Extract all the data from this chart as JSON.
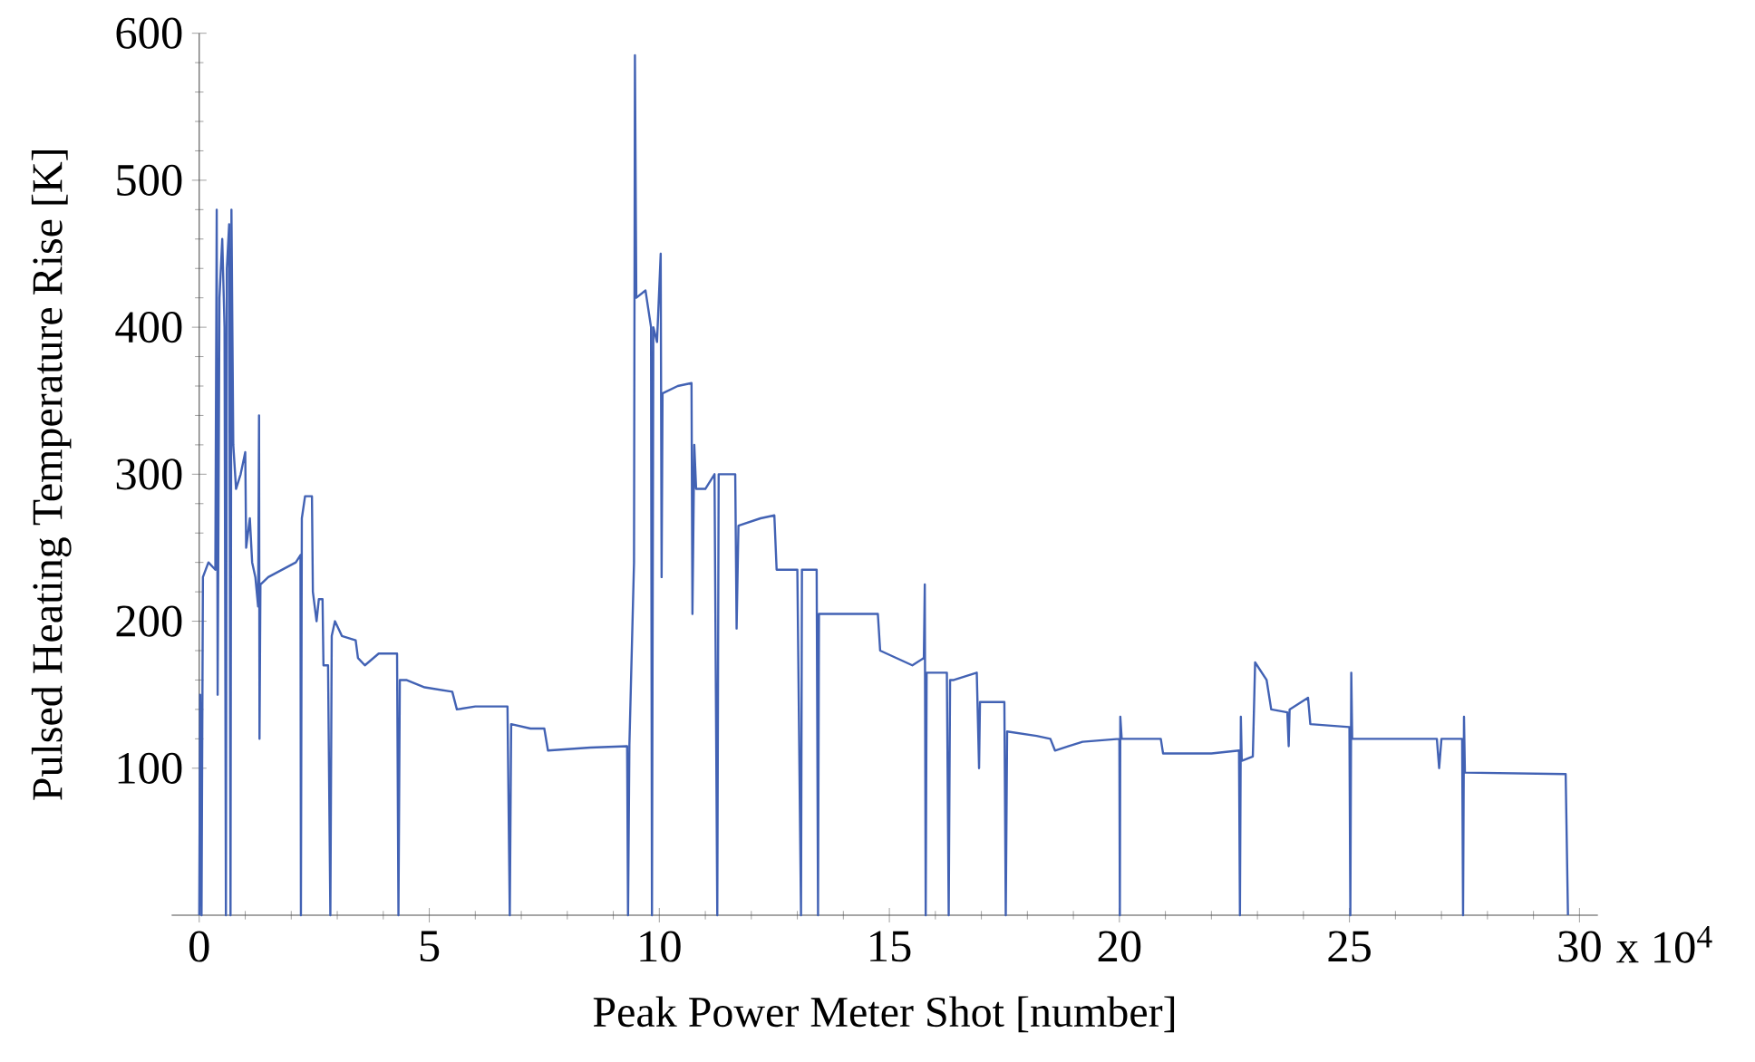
{
  "chart_data": {
    "type": "line",
    "xlabel": "Peak Power Meter Shot [number]",
    "ylabel": "Pulsed Heating Temperature Rise [K]",
    "annotations": [
      "x 10$^{4}$"
    ],
    "color": "#4262b4",
    "xlim": [
      -0.6,
      30.4
    ],
    "ylim": [
      0,
      600
    ],
    "xticks": [
      0,
      5,
      10,
      15,
      20,
      25,
      30
    ],
    "yticks": [
      100,
      200,
      300,
      400,
      500,
      600
    ],
    "x": [
      0,
      0.02,
      0.05,
      0.08,
      0.2,
      0.35,
      0.38,
      0.4,
      0.44,
      0.5,
      0.55,
      0.58,
      0.6,
      0.65,
      0.68,
      0.7,
      0.74,
      0.8,
      0.9,
      1.0,
      1.02,
      1.1,
      1.15,
      1.22,
      1.28,
      1.3,
      1.31,
      1.33,
      1.5,
      1.8,
      2.1,
      2.2,
      2.21,
      2.23,
      2.3,
      2.45,
      2.47,
      2.55,
      2.6,
      2.68,
      2.7,
      2.8,
      2.85,
      2.88,
      2.95,
      3.1,
      3.4,
      3.45,
      3.6,
      3.9,
      4.3,
      4.33,
      4.36,
      4.5,
      4.9,
      5.5,
      5.6,
      6.0,
      6.7,
      6.75,
      6.78,
      7.2,
      7.5,
      7.58,
      8.5,
      9.3,
      9.32,
      9.35,
      9.45,
      9.47,
      9.5,
      9.7,
      9.82,
      9.84,
      9.87,
      9.95,
      10.03,
      10.05,
      10.07,
      10.4,
      10.7,
      10.72,
      10.76,
      10.8,
      11.0,
      11.2,
      11.26,
      11.29,
      11.65,
      11.68,
      11.72,
      12.2,
      12.5,
      12.55,
      13.0,
      13.08,
      13.1,
      13.42,
      13.45,
      13.47,
      14.2,
      14.75,
      14.8,
      15.5,
      15.75,
      15.77,
      15.79,
      15.81,
      16.25,
      16.29,
      16.32,
      16.4,
      16.9,
      16.95,
      16.97,
      17.5,
      17.53,
      17.56,
      18.2,
      18.5,
      18.6,
      18.9,
      19.2,
      20.0,
      20.01,
      20.02,
      20.05,
      20.9,
      20.95,
      22.0,
      22.6,
      22.62,
      22.64,
      22.66,
      22.9,
      22.95,
      23.2,
      23.3,
      23.65,
      23.68,
      23.7,
      24.1,
      24.15,
      25.0,
      25.02,
      25.04,
      25.06,
      26.9,
      26.95,
      27.0,
      27.45,
      27.47,
      27.49,
      27.51,
      29.7,
      29.75
    ],
    "values": [
      0,
      150,
      0,
      230,
      240,
      235,
      480,
      150,
      420,
      460,
      400,
      0,
      440,
      470,
      0,
      480,
      320,
      290,
      300,
      315,
      250,
      270,
      240,
      230,
      210,
      340,
      120,
      225,
      230,
      235,
      240,
      245,
      0,
      270,
      285,
      285,
      220,
      200,
      215,
      215,
      170,
      170,
      0,
      190,
      200,
      190,
      187,
      175,
      170,
      178,
      178,
      0,
      160,
      160,
      155,
      152,
      140,
      142,
      142,
      0,
      130,
      127,
      127,
      112,
      114,
      115,
      0,
      116,
      240,
      585,
      420,
      425,
      400,
      0,
      400,
      390,
      450,
      230,
      355,
      360,
      362,
      205,
      320,
      290,
      290,
      300,
      0,
      300,
      300,
      195,
      265,
      270,
      272,
      235,
      235,
      0,
      235,
      235,
      0,
      205,
      205,
      205,
      180,
      170,
      175,
      225,
      0,
      165,
      165,
      0,
      160,
      160,
      165,
      100,
      145,
      145,
      0,
      125,
      122,
      120,
      112,
      115,
      118,
      120,
      0,
      135,
      120,
      120,
      110,
      110,
      112,
      0,
      135,
      105,
      108,
      172,
      160,
      140,
      138,
      115,
      140,
      148,
      130,
      128,
      0,
      165,
      120,
      120,
      100,
      120,
      120,
      0,
      135,
      97,
      96,
      0
    ]
  }
}
